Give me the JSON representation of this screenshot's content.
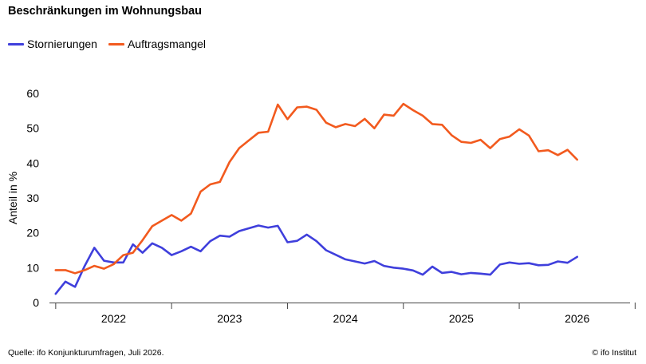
{
  "title": "Beschränkungen im Wohnungsbau",
  "footer": {
    "source": "Quelle: ifo Konjunkturumfragen,  Juli 2026.",
    "copyright": "© ifo Institut"
  },
  "colors": {
    "stornierungen": "#3f3fdc",
    "auftragsmangel": "#f25a1e",
    "axis": "#444444",
    "text": "#000000"
  },
  "chart_data": {
    "type": "line",
    "title": "Beschränkungen im Wohnungsbau",
    "ylabel": "Anteil in %",
    "xlabel": "",
    "ylim": [
      0,
      60
    ],
    "yticks": [
      0,
      10,
      20,
      30,
      40,
      50,
      60
    ],
    "xticks": [
      "2022",
      "2023",
      "2024",
      "2025",
      "2026"
    ],
    "grid": false,
    "legend_position": "top-left",
    "x_start": "2021-07",
    "x_end": "2026-07",
    "series": [
      {
        "name": "Stornierungen",
        "color": "#3f3fdc",
        "values": [
          2.5,
          6,
          4.5,
          10.5,
          15.7,
          12,
          11.5,
          11.5,
          16.7,
          14.3,
          17,
          15.7,
          13.6,
          14.7,
          16,
          14.7,
          17.6,
          19.2,
          18.9,
          20.5,
          21.3,
          22.1,
          21.5,
          22,
          17.3,
          17.7,
          19.5,
          17.6,
          15,
          13.7,
          12.4,
          11.8,
          11.2,
          11.9,
          10.5,
          10,
          9.7,
          9.2,
          8,
          10.3,
          8.5,
          8.8,
          8.1,
          8.5,
          8.3,
          8,
          10.9,
          11.5,
          11.1,
          11.3,
          10.7,
          10.8,
          11.8,
          11.4,
          13.1
        ]
      },
      {
        "name": "Auftragsmangel",
        "color": "#f25a1e",
        "values": [
          9.3,
          9.3,
          8.4,
          9.3,
          10.5,
          9.7,
          11,
          13.6,
          14.3,
          17.9,
          21.9,
          23.5,
          25.1,
          23.5,
          25.5,
          31.8,
          33.9,
          34.6,
          40.3,
          44.3,
          46.5,
          48.7,
          49,
          56.8,
          52.6,
          56,
          56.2,
          55.3,
          51.6,
          50.3,
          51.2,
          50.6,
          52.7,
          50,
          53.9,
          53.6,
          57,
          55.2,
          53.6,
          51.2,
          51,
          48,
          46.1,
          45.8,
          46.7,
          44.3,
          46.9,
          47.6,
          49.7,
          47.9,
          43.4,
          43.7,
          42.3,
          43.8,
          41
        ]
      }
    ]
  }
}
